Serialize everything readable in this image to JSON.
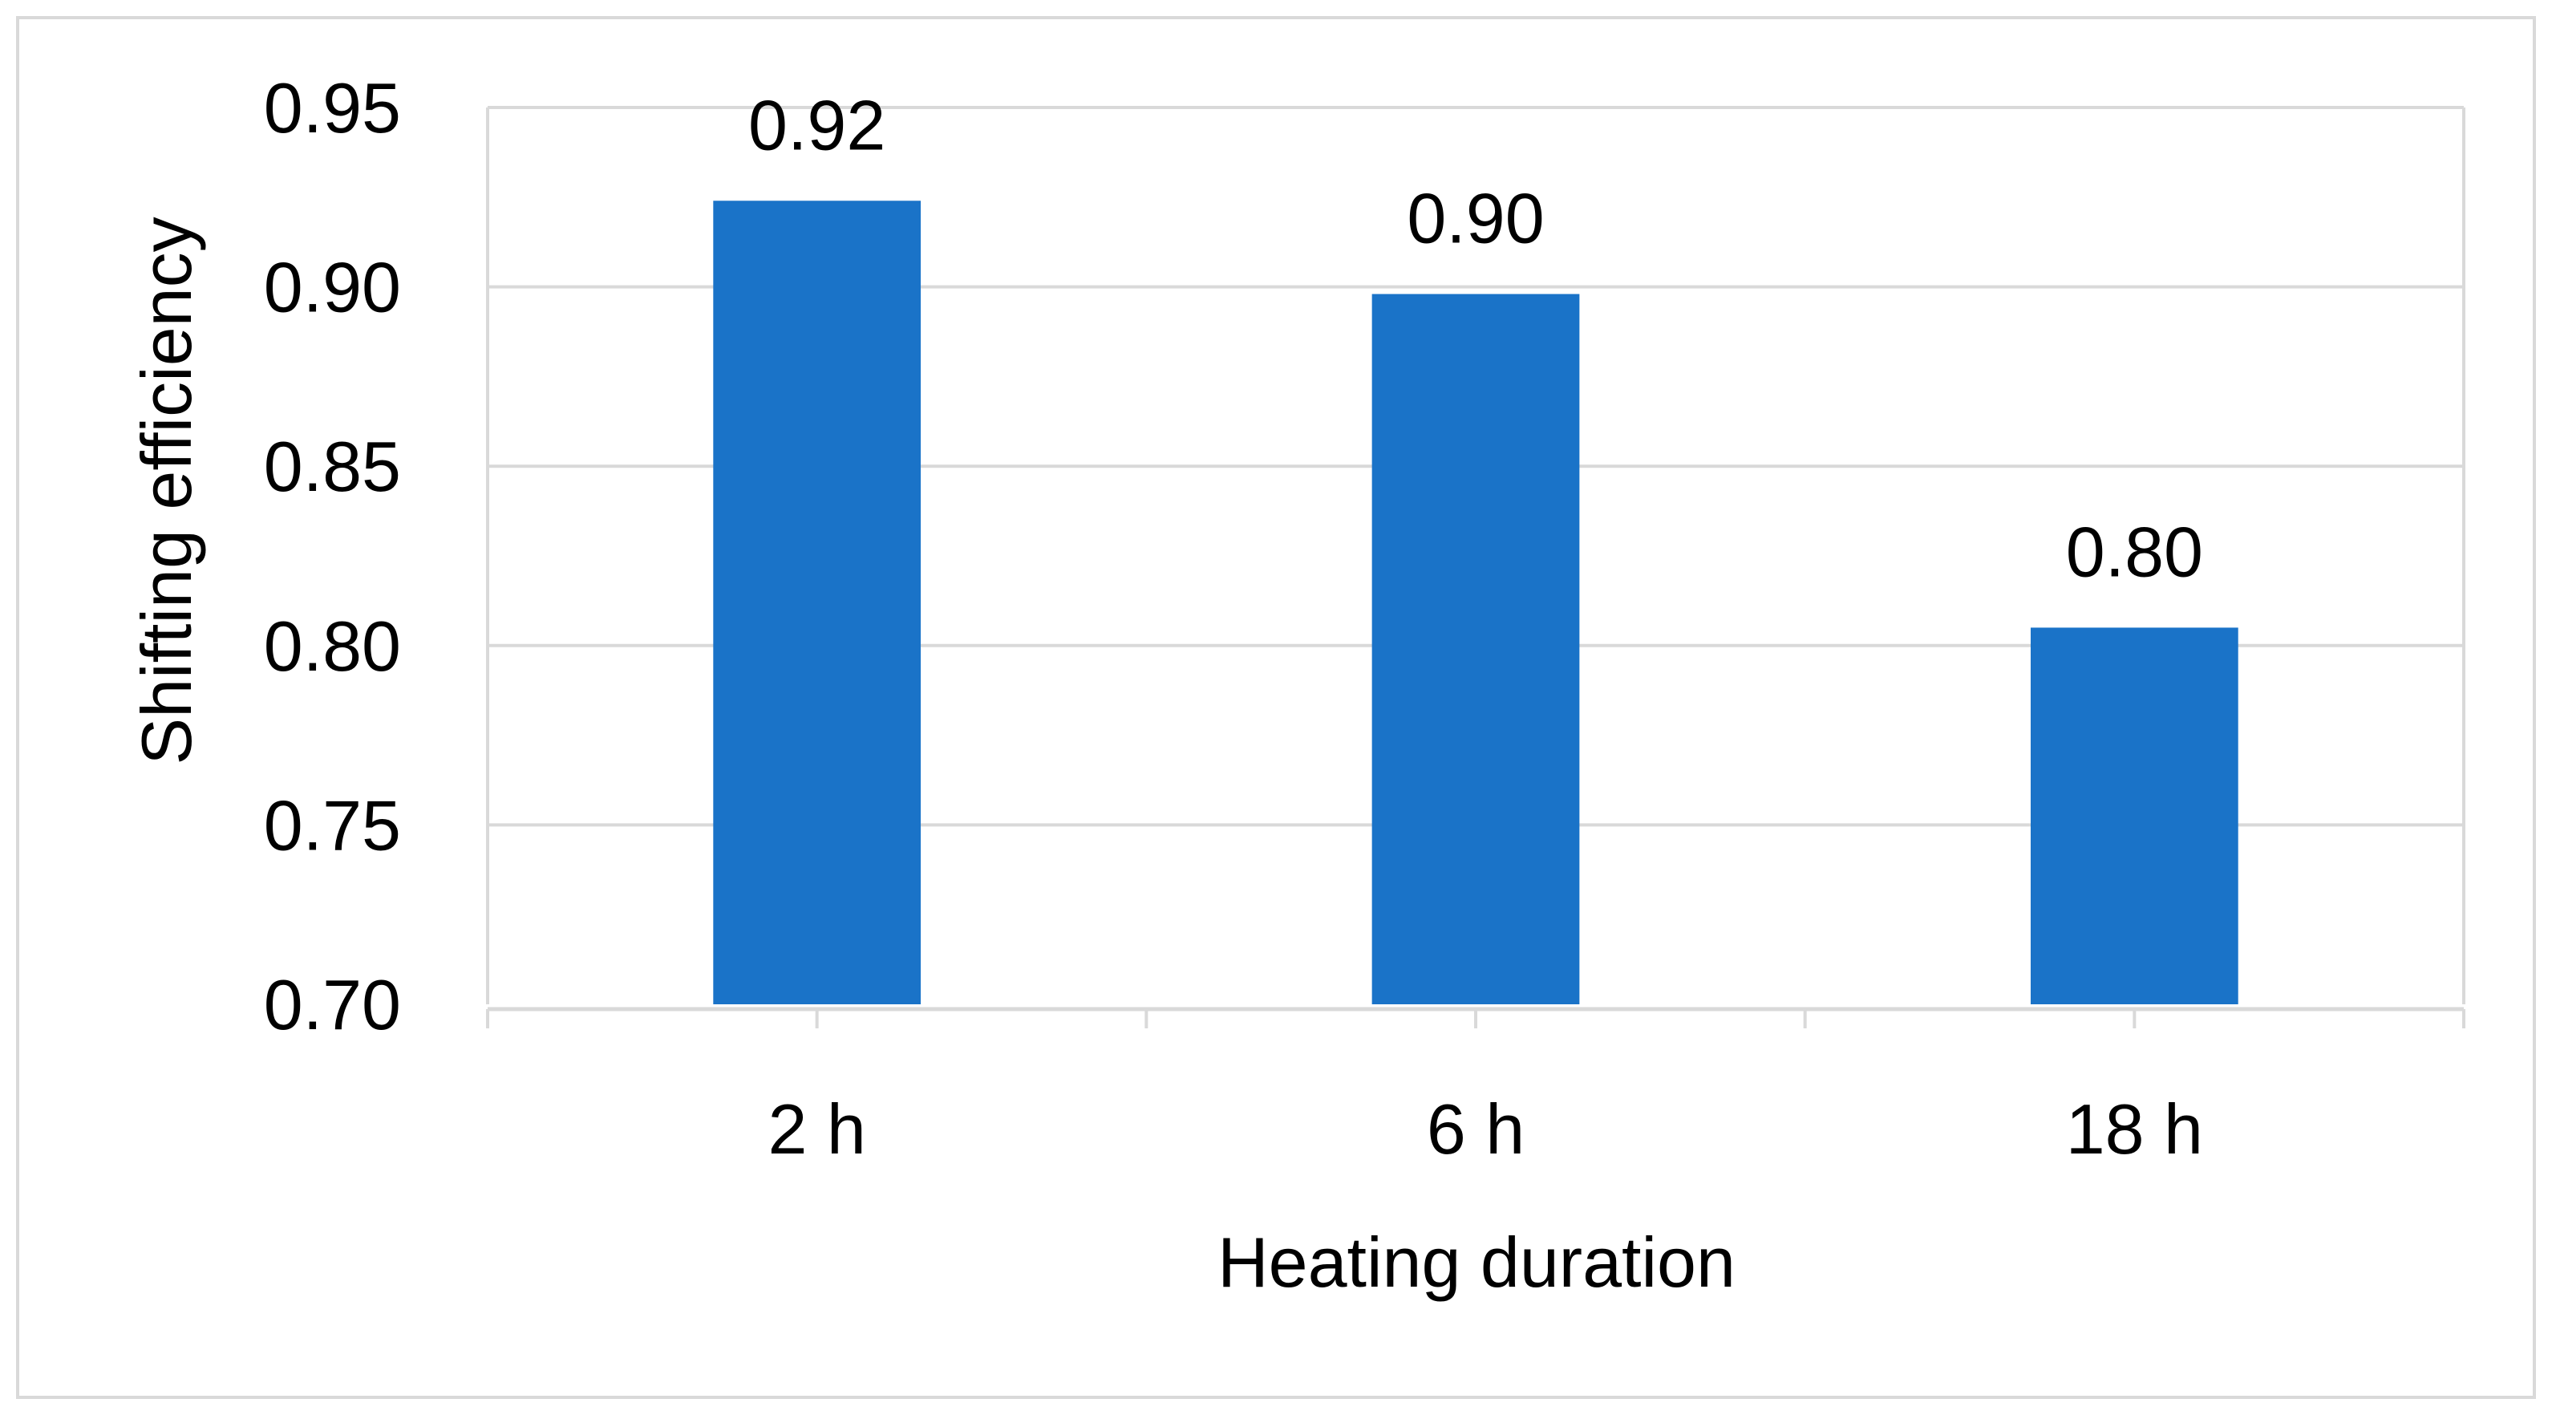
{
  "chart_data": {
    "type": "bar",
    "categories": [
      "2 h",
      "6 h",
      "18 h"
    ],
    "values": [
      0.924,
      0.898,
      0.805
    ],
    "data_labels": [
      "0.92",
      "0.90",
      "0.80"
    ],
    "title": "",
    "xlabel": "Heating duration",
    "ylabel": "Shifting efficiency",
    "ylim": [
      0.7,
      0.95
    ],
    "yticks": [
      0.7,
      0.75,
      0.8,
      0.85,
      0.9,
      0.95
    ],
    "ytick_labels": [
      "0.70",
      "0.75",
      "0.80",
      "0.85",
      "0.90",
      "0.95"
    ],
    "grid": true,
    "legend": "none",
    "colors": {
      "bar": "#1a73c8",
      "grid": "#d9d9d9",
      "axis": "#d9d9d9",
      "frame": "#d9d9d9"
    }
  }
}
